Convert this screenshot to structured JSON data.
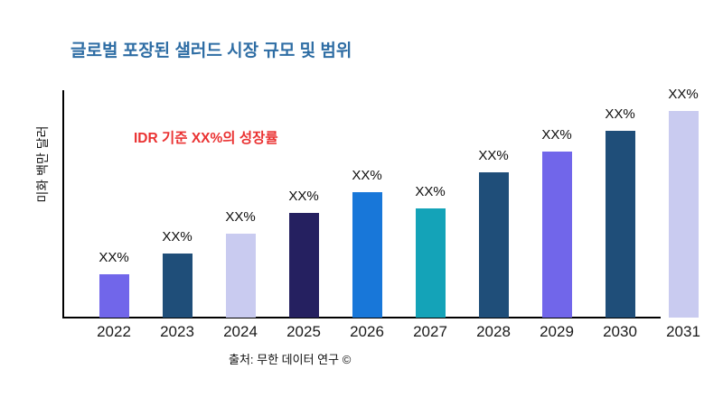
{
  "title": {
    "text": "글로벌 포장된 샐러드 시장 규모 및 범위",
    "color": "#2e6da4"
  },
  "annotation": {
    "text": "IDR 기준 XX%의 성장률",
    "color": "#ea3232"
  },
  "source": "출처: 무한 데이터 연구 ©",
  "chart_data": {
    "type": "bar",
    "title": "글로벌 포장된 샐러드 시장 규모 및 범위",
    "xlabel": "",
    "ylabel": "미화 백만 달러",
    "categories": [
      "2022",
      "2023",
      "2024",
      "2025",
      "2026",
      "2027",
      "2028",
      "2029",
      "2030",
      "2031"
    ],
    "values": [
      19,
      28,
      37,
      46,
      55,
      48,
      64,
      73,
      82,
      91
    ],
    "bar_labels": [
      "XX%",
      "XX%",
      "XX%",
      "XX%",
      "XX%",
      "XX%",
      "XX%",
      "XX%",
      "XX%",
      "XX%"
    ],
    "bar_colors": [
      "#7166ea",
      "#1f4e79",
      "#c9cbf0",
      "#252060",
      "#1877d9",
      "#14a3b8",
      "#1f4e79",
      "#7166ea",
      "#1f4e79",
      "#c9cbf0"
    ],
    "ylim": [
      0,
      100
    ],
    "grid": false,
    "legend": "none",
    "annotation": "IDR 기준 XX%의 성장률",
    "source": "출처: 무한 데이터 연구 ©"
  }
}
